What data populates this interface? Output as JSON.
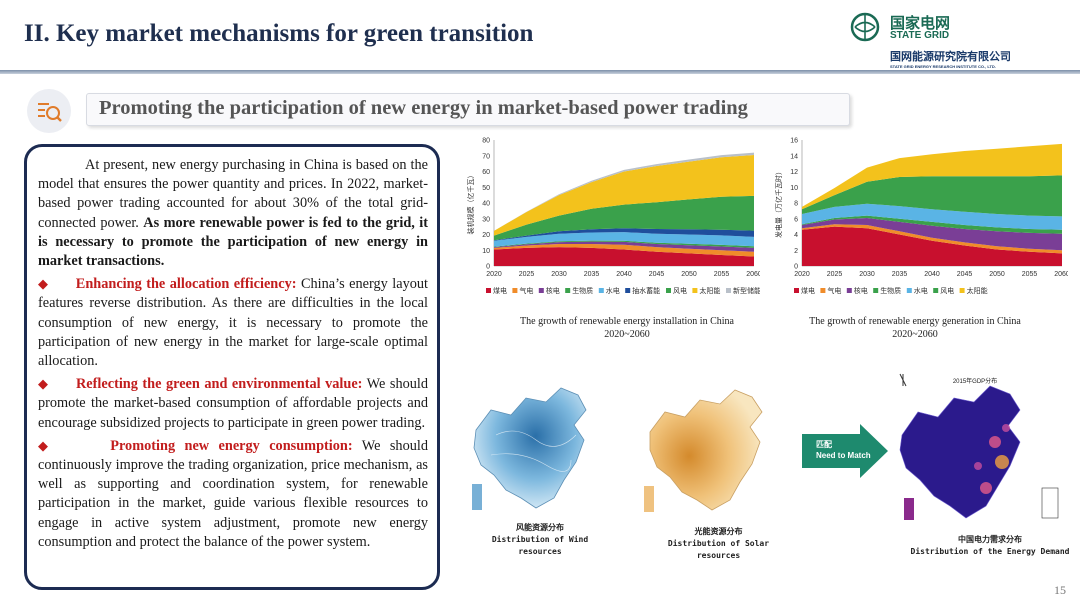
{
  "slide": {
    "title": "II. Key market mechanisms for green transition",
    "page_number": "15"
  },
  "logo": {
    "cn_name": "国家电网",
    "en_name": "STATE GRID",
    "institute_cn": "国网能源研究院有限公司",
    "institute_en": "STATE GRID ENERGY RESEARCH INSTITUTE CO., LTD."
  },
  "subtitle": "Promoting the participation of new energy in market-based power trading",
  "body": {
    "intro_plain": "At present, new energy purchasing in China is based on the model that ensures the power quantity and prices. In 2022, market-based power trading accounted for about 30% of the total grid-connected power. ",
    "intro_bold": "As more renewable power is fed to the grid, it is necessary to promote the participation of new energy in market transactions.",
    "items": [
      {
        "bullet": "◆",
        "title": "Enhancing the allocation efficiency:",
        "text": " China’s energy layout features reverse distribution. As there are difficulties in the local consumption of new energy, it is necessary to promote the participation of new energy in the market for large-scale optimal allocation."
      },
      {
        "bullet": "◆",
        "title": "Reflecting the green and environmental value:",
        "text": " We should promote the market-based consumption of affordable projects and encourage subsidized projects to participate in green power trading."
      },
      {
        "bullet": "◆",
        "title": "Promoting new energy consumption:",
        "text": " We should continuously improve the trading organization, price mechanism, as well as supporting and coordination system, for renewable participation in the market, guide various flexible resources to engage in active system adjustment, promote new energy consumption and protect the balance of the power system."
      }
    ]
  },
  "chart_data": [
    {
      "type": "area",
      "title": "The growth of renewable energy installation in China 2020~2060",
      "caption_line1": "The growth of renewable energy installation in China",
      "caption_line2": "2020~2060",
      "ylabel": "装机规模（亿千瓦）",
      "x": [
        2020,
        2025,
        2030,
        2035,
        2040,
        2045,
        2050,
        2055,
        2060
      ],
      "ylim": [
        0,
        80
      ],
      "yticks": [
        0,
        10,
        20,
        30,
        40,
        50,
        60,
        70,
        80
      ],
      "legend_position": "bottom",
      "series": [
        {
          "name": "煤电",
          "color": "#c8102e",
          "values": [
            10.5,
            11.5,
            12,
            11.5,
            10.5,
            9,
            8,
            7,
            6
          ]
        },
        {
          "name": "气电",
          "color": "#f08c2a",
          "values": [
            1,
            1.5,
            2,
            2.5,
            3,
            3,
            3,
            3,
            3
          ]
        },
        {
          "name": "核电",
          "color": "#7a3e96",
          "values": [
            0.5,
            0.8,
            1.2,
            1.5,
            1.8,
            2,
            2.2,
            2.4,
            2.5
          ]
        },
        {
          "name": "生物质",
          "color": "#3aa14b",
          "values": [
            0.3,
            0.4,
            0.5,
            0.6,
            0.7,
            0.8,
            0.9,
            1,
            1
          ]
        },
        {
          "name": "水电",
          "color": "#5ab4e5",
          "values": [
            3.7,
            4.3,
            4.8,
            5.2,
            5.5,
            5.7,
            5.9,
            6,
            6
          ]
        },
        {
          "name": "抽水蓄能",
          "color": "#1f4e9c",
          "values": [
            0.3,
            0.8,
            1.5,
            2,
            2.5,
            3,
            3.3,
            3.6,
            4
          ]
        },
        {
          "name": "风电",
          "color": "#3aa14b",
          "values": [
            3,
            7,
            10,
            13,
            15,
            17,
            19,
            21,
            22
          ]
        },
        {
          "name": "太阳能",
          "color": "#f3c21c",
          "values": [
            3,
            8,
            13,
            17,
            21,
            23,
            24,
            25,
            26
          ]
        },
        {
          "name": "新型储能",
          "color": "#b9c0c9",
          "values": [
            0,
            0.2,
            0.5,
            0.8,
            1,
            1.2,
            1.3,
            1.4,
            1.5
          ]
        }
      ]
    },
    {
      "type": "area",
      "title": "The growth of renewable energy generation in China 2020~2060",
      "caption_line1": "The growth of renewable energy generation in China",
      "caption_line2": "2020~2060",
      "ylabel": "发电量（万亿千瓦时）",
      "x": [
        2020,
        2025,
        2030,
        2035,
        2040,
        2045,
        2050,
        2055,
        2060
      ],
      "ylim": [
        0,
        16
      ],
      "yticks": [
        0,
        2,
        4,
        6,
        8,
        10,
        12,
        14,
        16
      ],
      "legend_position": "bottom",
      "series": [
        {
          "name": "煤电",
          "color": "#c8102e",
          "values": [
            4.6,
            5,
            4.8,
            4,
            3.2,
            2.6,
            2.1,
            1.8,
            1.6
          ]
        },
        {
          "name": "气电",
          "color": "#f08c2a",
          "values": [
            0.2,
            0.3,
            0.4,
            0.4,
            0.4,
            0.4,
            0.4,
            0.4,
            0.4
          ]
        },
        {
          "name": "核电",
          "color": "#7a3e96",
          "values": [
            0.4,
            0.6,
            0.9,
            1.2,
            1.5,
            1.7,
            1.9,
            2.0,
            2.1
          ]
        },
        {
          "name": "生物质",
          "color": "#3aa14b",
          "values": [
            0.1,
            0.2,
            0.3,
            0.4,
            0.5,
            0.5,
            0.5,
            0.5,
            0.5
          ]
        },
        {
          "name": "水电",
          "color": "#5ab4e5",
          "values": [
            1.3,
            1.4,
            1.5,
            1.6,
            1.6,
            1.7,
            1.7,
            1.7,
            1.7
          ]
        },
        {
          "name": "风电",
          "color": "#3aa14b",
          "values": [
            0.6,
            1.5,
            2.8,
            3.7,
            4.2,
            4.5,
            4.8,
            5.0,
            5.2
          ]
        },
        {
          "name": "太阳能",
          "color": "#f3c21c",
          "values": [
            0.3,
            0.9,
            1.8,
            2.4,
            2.8,
            3.2,
            3.5,
            3.8,
            4.0
          ]
        }
      ]
    }
  ],
  "maps": {
    "wind_cn": "风能资源分布",
    "wind_en": "Distribution of Wind resources",
    "solar_cn": "光能资源分布",
    "solar_en": "Distribution of Solar resources",
    "demand_cn": "中国电力需求分布",
    "demand_en": "Distribution of the Energy Demand",
    "demand_map_title": "2015年GDP分布",
    "arrow_cn": "匹配",
    "arrow_en": "Need to Match",
    "wind_color": "#3f8fc4",
    "solar_color": "#e8a84a",
    "demand_color": "#2b1a8c",
    "arrow_color": "#1e8a6e"
  }
}
